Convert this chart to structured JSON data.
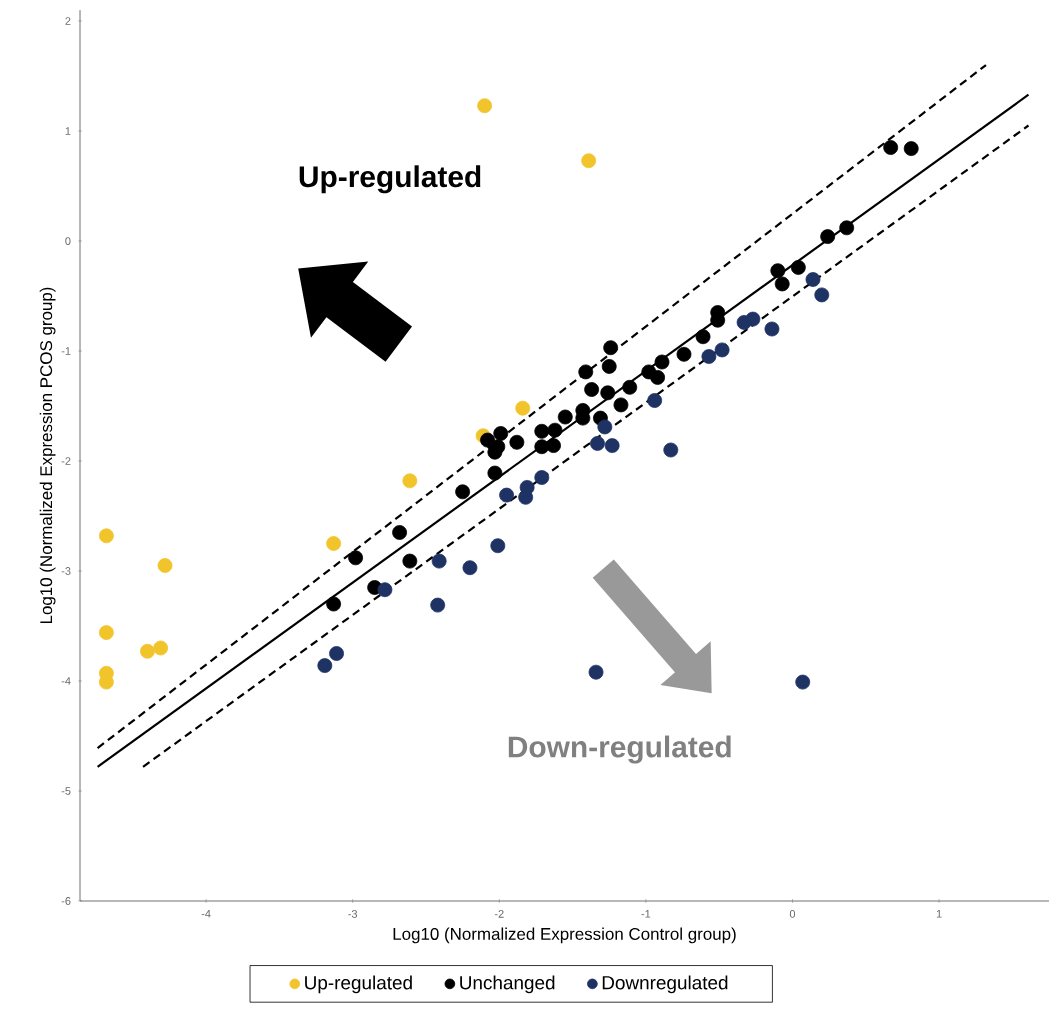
{
  "chart_data": {
    "type": "scatter",
    "xlabel": "Log10 (Normalized Expression Control group)",
    "ylabel": "Log10 (Normalized Expression PCOS group)",
    "xlim": [
      -4.86,
      1.75
    ],
    "ylim": [
      -6,
      2.1
    ],
    "xticks": [
      -4,
      -3,
      -2,
      -1,
      0,
      1
    ],
    "yticks": [
      -6,
      -5,
      -4,
      -3,
      -2,
      -1,
      0,
      1,
      2
    ],
    "legend": "bottom",
    "annotations": [
      "Up-regulated",
      "Down-regulated"
    ],
    "series": [
      {
        "name": "Up-regulated",
        "marker": "circle",
        "color": "#f2c42c",
        "x": [
          -2.1,
          -1.39,
          -1.84,
          -2.11,
          -2.61,
          -3.13,
          -4.68,
          -4.28,
          -4.68,
          -4.4,
          -4.31,
          -4.68,
          -4.68
        ],
        "values": [
          1.23,
          0.73,
          -1.52,
          -1.77,
          -2.18,
          -2.75,
          -2.68,
          -2.95,
          -3.56,
          -3.73,
          -3.7,
          -3.93,
          -4.01
        ]
      },
      {
        "name": "Unchanged",
        "marker": "circle",
        "color": "#000000",
        "x": [
          0.67,
          0.81,
          0.37,
          0.24,
          0.04,
          -0.1,
          -0.07,
          -0.51,
          -0.51,
          -0.61,
          -0.74,
          -0.89,
          -0.92,
          -0.98,
          -1.11,
          -1.17,
          -1.24,
          -1.25,
          -1.41,
          -1.37,
          -1.26,
          -1.55,
          -1.43,
          -1.43,
          -1.31,
          -1.62,
          -1.71,
          -1.63,
          -1.71,
          -1.88,
          -1.99,
          -2.08,
          -2.01,
          -2.03,
          -2.03,
          -2.25,
          -2.68,
          -2.98,
          -2.61,
          -3.13,
          -2.85
        ],
        "values": [
          0.85,
          0.84,
          0.12,
          0.04,
          -0.24,
          -0.27,
          -0.39,
          -0.65,
          -0.72,
          -0.87,
          -1.03,
          -1.1,
          -1.24,
          -1.19,
          -1.33,
          -1.49,
          -0.97,
          -1.14,
          -1.19,
          -1.35,
          -1.38,
          -1.6,
          -1.54,
          -1.61,
          -1.61,
          -1.72,
          -1.73,
          -1.86,
          -1.87,
          -1.83,
          -1.75,
          -1.81,
          -1.87,
          -1.92,
          -2.11,
          -2.28,
          -2.65,
          -2.88,
          -2.91,
          -3.3,
          -3.15
        ]
      },
      {
        "name": "Downregulated",
        "marker": "circle",
        "color": "#1f3264",
        "x": [
          0.14,
          0.2,
          -0.33,
          -0.27,
          -0.14,
          -0.48,
          -0.57,
          -0.94,
          -0.83,
          -1.28,
          -1.33,
          -1.23,
          -1.71,
          -1.81,
          -1.82,
          -1.95,
          -2.01,
          -2.41,
          -2.2,
          -2.42,
          -2.78,
          -3.11,
          -3.19,
          -1.34,
          0.07
        ],
        "values": [
          -0.35,
          -0.49,
          -0.74,
          -0.71,
          -0.8,
          -0.99,
          -1.05,
          -1.45,
          -1.9,
          -1.69,
          -1.84,
          -1.86,
          -2.15,
          -2.24,
          -2.33,
          -2.31,
          -2.77,
          -2.91,
          -2.97,
          -3.31,
          -3.17,
          -3.75,
          -3.86,
          -3.92,
          -4.01
        ]
      },
      {
        "type": "line",
        "marker": "none",
        "color": "#000000",
        "line_style": "solid",
        "x": [
          -4.74,
          1.61
        ],
        "values": [
          -4.78,
          1.33
        ]
      },
      {
        "type": "line",
        "marker": "none",
        "color": "#000000",
        "line_style": "dashed",
        "x": [
          -4.74,
          1.32
        ],
        "values": [
          -4.61,
          1.6
        ]
      },
      {
        "type": "line",
        "marker": "none",
        "color": "#000000",
        "line_style": "dashed",
        "x": [
          -4.43,
          1.61
        ],
        "values": [
          -4.78,
          1.05
        ]
      }
    ]
  }
}
